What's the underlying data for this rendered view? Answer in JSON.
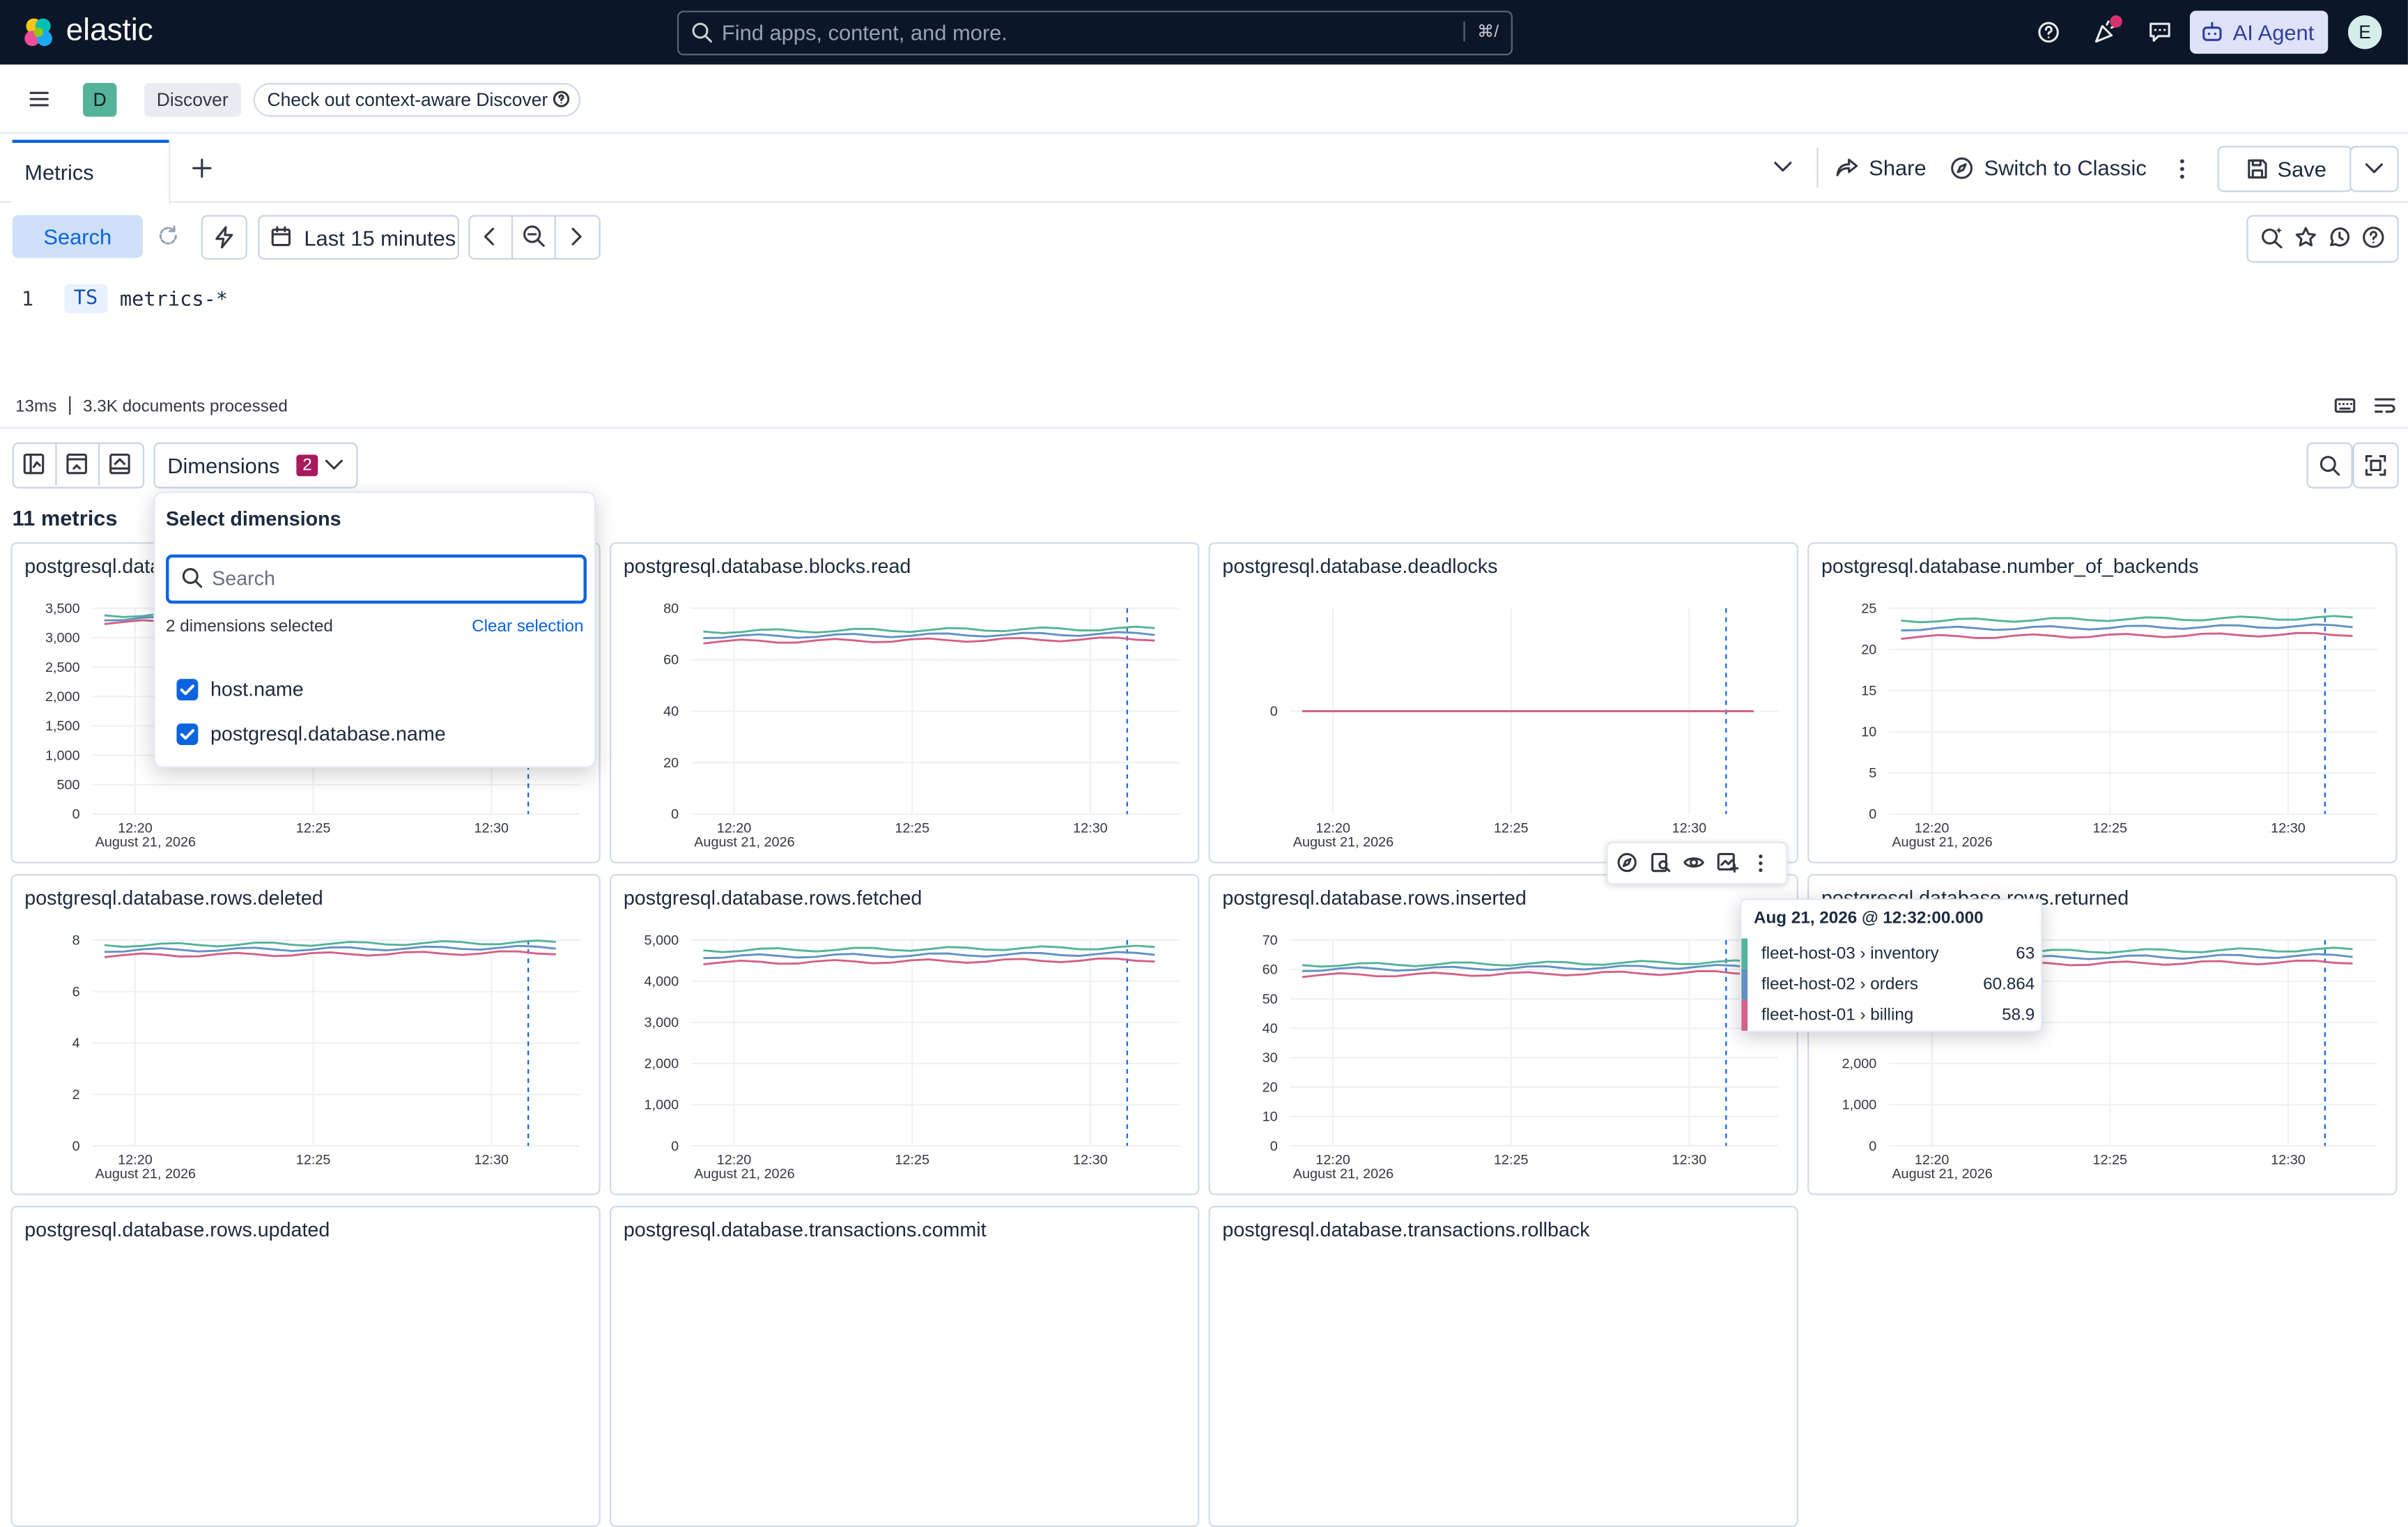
{
  "header": {
    "brand": "elastic",
    "search_placeholder": "Find apps, content, and more.",
    "search_shortcut": "⌘/",
    "ai_agent_label": "AI Agent",
    "avatar_initial": "E"
  },
  "breadcrumb": {
    "space_initial": "D",
    "app": "Discover",
    "promo": "Check out context-aware Discover"
  },
  "tabs": [
    {
      "label": "Metrics"
    }
  ],
  "tab_actions": {
    "share": "Share",
    "switch": "Switch to Classic",
    "save": "Save"
  },
  "query_bar": {
    "search_label": "Search",
    "time_range": "Last 15 minutes"
  },
  "editor": {
    "line_number": "1",
    "keyword": "TS",
    "source": "metrics-*"
  },
  "status": {
    "duration": "13ms",
    "processed": "3.3K documents processed"
  },
  "toolbar": {
    "dimensions_label": "Dimensions",
    "dimensions_count": "2"
  },
  "metrics_count": "11 metrics",
  "dimensions_popover": {
    "title": "Select dimensions",
    "search_placeholder": "Search",
    "selected_text": "2 dimensions selected",
    "clear_label": "Clear selection",
    "options": [
      {
        "label": "host.name",
        "checked": true
      },
      {
        "label": "postgresql.database.name",
        "checked": true
      }
    ]
  },
  "tooltip": {
    "title": "Aug 21, 2026 @ 12:32:00.000",
    "rows": [
      {
        "label": "fleet-host-03 › inventory",
        "value": "63",
        "color": "#54b399"
      },
      {
        "label": "fleet-host-02 › orders",
        "value": "60.864",
        "color": "#6092c0"
      },
      {
        "label": "fleet-host-01 › billing",
        "value": "58.9",
        "color": "#d36086"
      }
    ]
  },
  "series_colors": {
    "inventory": "#54b399",
    "orders": "#6092c0",
    "billing": "#d36086"
  },
  "x_axis": {
    "ticks": [
      "12:20",
      "12:25",
      "12:30"
    ],
    "date": "August 21, 2026"
  },
  "metrics": [
    {
      "title": "postgresql.database.blks_hit",
      "yticks": [
        "3,500",
        "3,000",
        "2,500",
        "2,000",
        "1,500",
        "1,000",
        "500",
        "0"
      ],
      "ymax": 3500,
      "series": [
        3380,
        3320,
        3260
      ]
    },
    {
      "title": "postgresql.database.blocks.read",
      "yticks": [
        "80",
        "60",
        "40",
        "20",
        "0"
      ],
      "ymax": 80,
      "series": [
        71,
        69,
        67
      ]
    },
    {
      "title": "postgresql.database.deadlocks",
      "yticks": [
        "0"
      ],
      "ymax": 0,
      "series": [
        0,
        0,
        0
      ]
    },
    {
      "title": "postgresql.database.number_of_backends",
      "yticks": [
        "25",
        "20",
        "15",
        "10",
        "5",
        "0"
      ],
      "ymax": 25,
      "series": [
        23.5,
        22.5,
        21.5
      ]
    },
    {
      "title": "postgresql.database.rows.deleted",
      "yticks": [
        "8",
        "6",
        "4",
        "2",
        "0"
      ],
      "ymax": 8,
      "series": [
        7.8,
        7.6,
        7.4
      ]
    },
    {
      "title": "postgresql.database.rows.fetched",
      "yticks": [
        "5,000",
        "4,000",
        "3,000",
        "2,000",
        "1,000",
        "0"
      ],
      "ymax": 5000,
      "series": [
        4750,
        4600,
        4450
      ]
    },
    {
      "title": "postgresql.database.rows.inserted",
      "yticks": [
        "70",
        "60",
        "50",
        "40",
        "30",
        "20",
        "10",
        "0"
      ],
      "ymax": 70,
      "series": [
        61.5,
        60,
        58
      ]
    },
    {
      "title": "postgresql.database.rows.returned",
      "yticks": [
        "5,000",
        "4,000",
        "3,000",
        "2,000",
        "1,000",
        "0"
      ],
      "ymax": 5000,
      "series": [
        4700,
        4550,
        4400
      ]
    },
    {
      "title": "postgresql.database.rows.updated"
    },
    {
      "title": "postgresql.database.transactions.commit"
    },
    {
      "title": "postgresql.database.transactions.rollback"
    }
  ]
}
